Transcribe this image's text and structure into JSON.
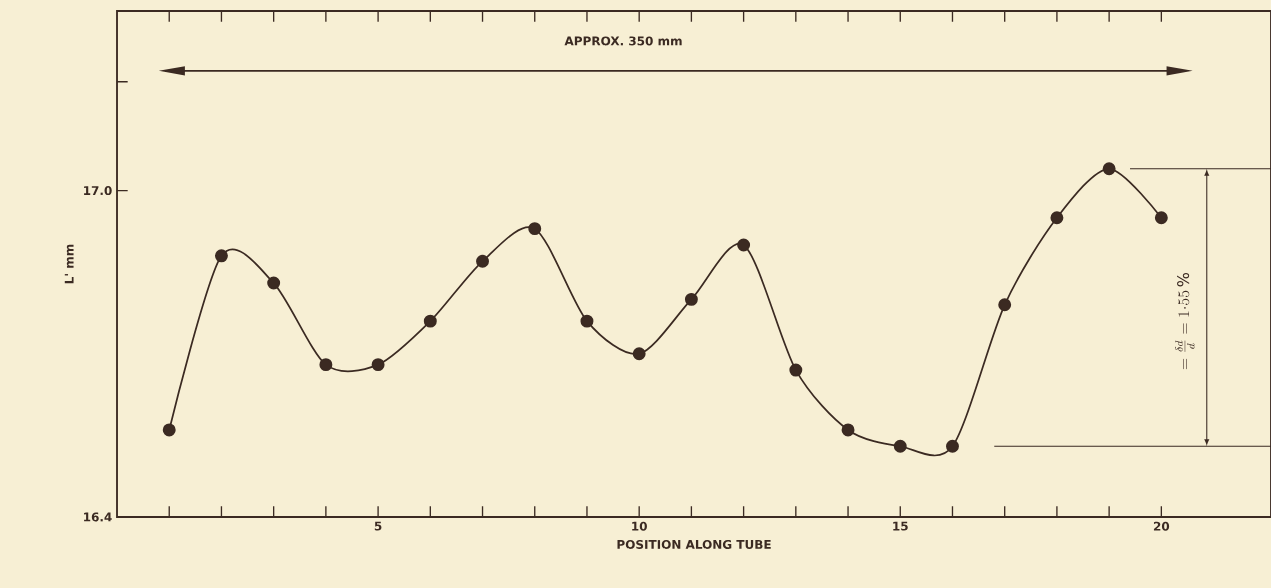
{
  "chart_data": {
    "type": "line",
    "xlabel": "POSITION ALONG TUBE",
    "ylabel": "L' mm",
    "x": [
      1,
      2,
      3,
      4,
      5,
      6,
      7,
      8,
      9,
      10,
      11,
      12,
      13,
      14,
      15,
      16,
      17,
      18,
      19,
      20
    ],
    "series": [
      {
        "color": "#3b2a22",
        "values": [
          16.56,
          16.88,
          16.83,
          16.68,
          16.68,
          16.76,
          16.87,
          16.93,
          16.76,
          16.7,
          16.8,
          16.9,
          16.67,
          16.56,
          16.53,
          16.53,
          16.79,
          16.95,
          17.04,
          16.95
        ]
      }
    ],
    "marker": "circle",
    "line_style": "solid",
    "xlim": [
      0,
      22.1
    ],
    "ylim": [
      16.4,
      17.33
    ],
    "xticks": [
      {
        "value": 1,
        "label": null
      },
      {
        "value": 2,
        "label": null
      },
      {
        "value": 3,
        "label": null
      },
      {
        "value": 4,
        "label": null
      },
      5,
      {
        "value": 6,
        "label": null
      },
      {
        "value": 7,
        "label": null
      },
      {
        "value": 8,
        "label": null
      },
      {
        "value": 9,
        "label": null
      },
      10,
      {
        "value": 11,
        "label": null
      },
      {
        "value": 12,
        "label": null
      },
      {
        "value": 13,
        "label": null
      },
      {
        "value": 14,
        "label": null
      },
      15,
      {
        "value": 16,
        "label": null
      },
      {
        "value": 17,
        "label": null
      },
      {
        "value": 18,
        "label": null
      },
      {
        "value": 19,
        "label": null
      },
      20
    ],
    "yticks": [
      {
        "value": 16.4,
        "label": "16.4"
      },
      {
        "value": 17.0,
        "label": "17.0"
      },
      {
        "value": 17.2,
        "label": null
      }
    ],
    "grid": false,
    "annotations": [
      "APPROX. 350 mm",
      "=\\frac{\\delta d}{d}=1{\\cdot}55\\,\\%"
    ]
  }
}
